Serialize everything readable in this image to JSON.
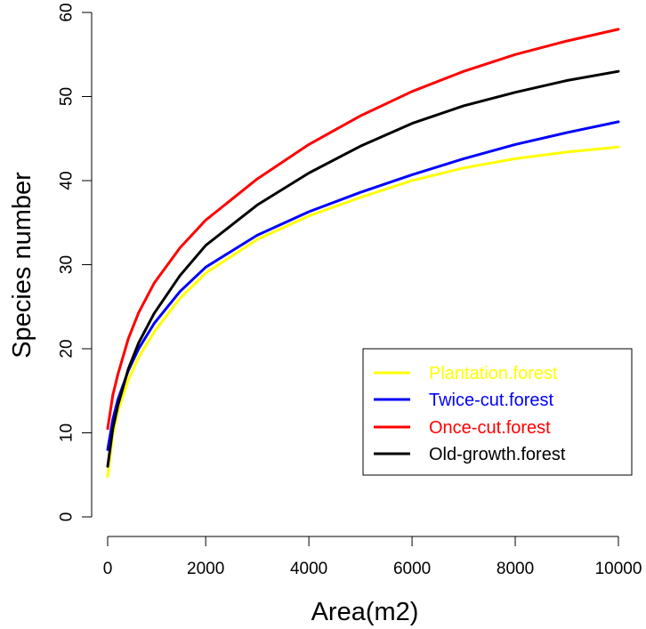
{
  "chart_data": {
    "type": "line",
    "title": "",
    "xlabel": "Area(m2)",
    "ylabel": "Species number",
    "xlim": [
      100,
      10000
    ],
    "ylim": [
      0,
      60
    ],
    "xticks": [
      0,
      2000,
      4000,
      6000,
      8000,
      10000
    ],
    "yticks": [
      0,
      10,
      20,
      30,
      40,
      50,
      60
    ],
    "x": [
      100,
      200,
      300,
      500,
      700,
      1000,
      1500,
      2000,
      3000,
      4000,
      5000,
      6000,
      7000,
      8000,
      9000,
      10000
    ],
    "series": [
      {
        "name": "Plantation.forest",
        "color": "#ffff00",
        "values": [
          4.8,
          9.8,
          12.6,
          16.3,
          19.0,
          22.0,
          26.0,
          29.0,
          33.0,
          35.8,
          38.0,
          40.0,
          41.5,
          42.6,
          43.4,
          44.0
        ]
      },
      {
        "name": "Twice-cut.forest",
        "color": "#0000ff",
        "values": [
          8.0,
          11.6,
          14.0,
          17.4,
          20.0,
          23.0,
          26.8,
          29.7,
          33.5,
          36.3,
          38.6,
          40.7,
          42.6,
          44.3,
          45.7,
          47.0
        ]
      },
      {
        "name": "Once-cut.forest",
        "color": "#ff0000",
        "values": [
          10.5,
          14.5,
          17.0,
          21.2,
          24.3,
          27.8,
          32.0,
          35.3,
          40.2,
          44.3,
          47.7,
          50.6,
          53.0,
          55.0,
          56.6,
          58.0
        ]
      },
      {
        "name": "Old-growth.forest",
        "color": "#000000",
        "values": [
          6.0,
          10.5,
          13.3,
          17.6,
          20.7,
          24.2,
          28.7,
          32.3,
          37.1,
          40.9,
          44.1,
          46.8,
          48.9,
          50.5,
          51.9,
          53.0
        ]
      }
    ],
    "legend": {
      "position": "bottom-right",
      "entries": [
        {
          "label": "Plantation.forest",
          "color": "#ffff00"
        },
        {
          "label": "Twice-cut.forest",
          "color": "#0000ff"
        },
        {
          "label": "Once-cut.forest",
          "color": "#ff0000"
        },
        {
          "label": "Old-growth.forest",
          "color": "#000000"
        }
      ]
    },
    "grid": false
  }
}
